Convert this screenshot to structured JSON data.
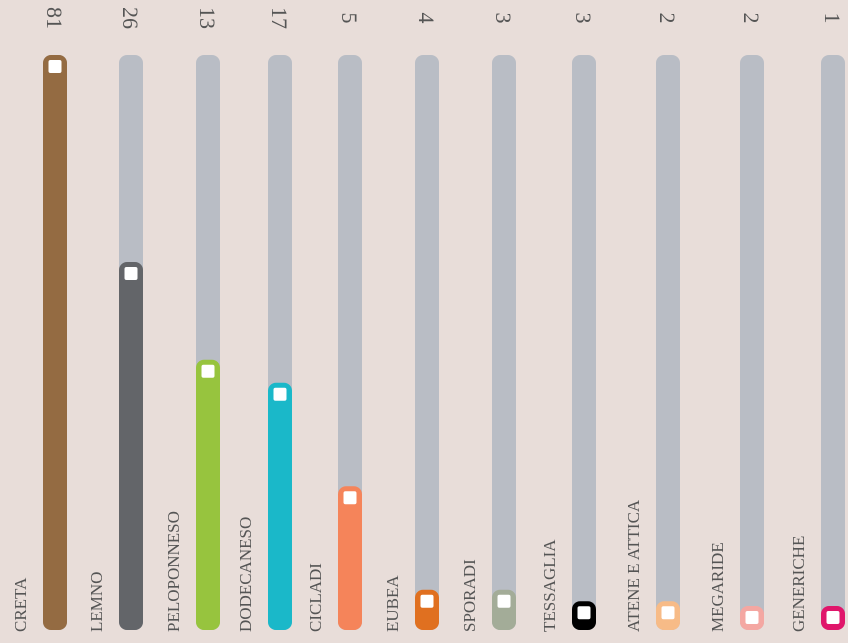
{
  "chart_data": {
    "type": "bar",
    "categories": [
      "CRETA",
      "LEMNO",
      "PELOPONNESO",
      "DODECANESO",
      "CICLADI",
      "EUBEA",
      "SPORADI",
      "TESSAGLIA",
      "ATENE E ATTICA",
      "MEGARIDE",
      "GENERICHE"
    ],
    "values": [
      81,
      26,
      13,
      17,
      5,
      4,
      3,
      3,
      2,
      2,
      1
    ],
    "levels": [
      100,
      64,
      47,
      43,
      25,
      7,
      7,
      5,
      5,
      4,
      4
    ],
    "colors": [
      "#946b42",
      "#636569",
      "#97c43e",
      "#1ab8c9",
      "#f5845a",
      "#e07020",
      "#a3ac98",
      "#000000",
      "#f7bb87",
      "#f4a7a2",
      "#e0166b"
    ],
    "track_color": "#b9bdc5"
  }
}
